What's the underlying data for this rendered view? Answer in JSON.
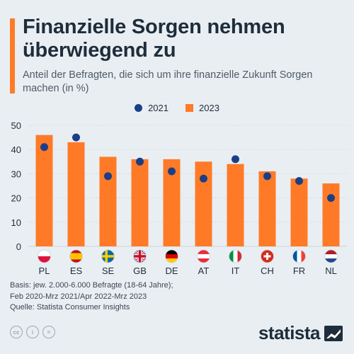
{
  "title": "Finanzielle Sorgen nehmen überwiegend zu",
  "subtitle": "Anteil der Befragten, die sich um ihre finanzielle Zukunft Sorgen machen (in %)",
  "legend": {
    "a": "2021",
    "b": "2023"
  },
  "colors": {
    "bar": "#ff7a27",
    "dot": "#1b3f86",
    "text": "#1e2d3b",
    "grid": "#cdd5dc"
  },
  "chart_data": {
    "type": "bar",
    "title": "Finanzielle Sorgen nehmen überwiegend zu",
    "subtitle": "Anteil der Befragten, die sich um ihre finanzielle Zukunft Sorgen machen (in %)",
    "categories": [
      "PL",
      "ES",
      "SE",
      "GB",
      "DE",
      "AT",
      "IT",
      "CH",
      "FR",
      "NL"
    ],
    "series": [
      {
        "name": "2023",
        "type": "bar",
        "values": [
          46,
          43,
          37,
          36,
          36,
          35,
          34,
          31,
          28,
          26
        ]
      },
      {
        "name": "2021",
        "type": "dot",
        "values": [
          41,
          45,
          29,
          35,
          31,
          28,
          36,
          29,
          27,
          20
        ]
      }
    ],
    "yticks": [
      0,
      10,
      20,
      30,
      40,
      50
    ],
    "ylim": [
      0,
      50
    ],
    "xlabel": "",
    "ylabel": "",
    "grid": true,
    "legend_position": "top-center"
  },
  "footer": {
    "line1": "Basis: jew. 2.000-6.000  Befragte (18-64 Jahre);",
    "line2": "Feb 2020-Mrz 2021/Apr 2022-Mrz 2023",
    "line3": "Quelle: Statista Consumer Insights"
  },
  "license_icons": [
    "cc",
    "i",
    "="
  ],
  "brand": "statista"
}
